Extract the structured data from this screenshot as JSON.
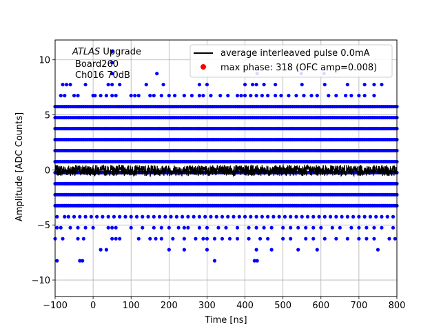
{
  "chart_data": {
    "type": "scatter",
    "title": "",
    "xlabel": "Time [ns]",
    "ylabel": "Amplitude [ADC Counts]",
    "xlim": [
      -100,
      800
    ],
    "ylim": [
      -11.5,
      11.8
    ],
    "xticks": [
      -100,
      0,
      100,
      200,
      300,
      400,
      500,
      600,
      700,
      800
    ],
    "yticks": [
      -10,
      -5,
      0,
      5,
      10
    ],
    "xtick_labels": [
      "−100",
      "0",
      "100",
      "200",
      "300",
      "400",
      "500",
      "600",
      "700",
      "800"
    ],
    "ytick_labels": [
      "−10",
      "−5",
      "0",
      "5",
      "10"
    ],
    "grid": true,
    "legend_position": "top-right",
    "annotation": {
      "line1_italic": "ATLAS",
      "line1_rest": " Upgrade",
      "line2": "Board260",
      "line3": "Ch016 70dB"
    },
    "series": [
      {
        "name": "average interleaved pulse 0.0mA",
        "kind": "line",
        "color": "#000000",
        "amplitude_range": [
          -0.6,
          0.5
        ]
      },
      {
        "name": "",
        "kind": "scatter",
        "color": "#0000ff",
        "dense_levels": [
          5.75,
          4.75,
          3.75,
          2.75,
          1.75,
          0.75,
          -0.25,
          -1.25,
          -2.25,
          -3.25
        ],
        "sparse_levels": [
          {
            "y": 10.75,
            "x": [
              50
            ]
          },
          {
            "y": 9.75,
            "x": [
              50
            ]
          },
          {
            "y": 8.75,
            "x": [
              50,
              168,
              432,
              548,
              608
            ]
          },
          {
            "y": 7.75,
            "x": [
              -80,
              -70,
              -60,
              -20,
              40,
              50,
              70,
              140,
              185,
              280,
              300,
              400,
              420,
              430,
              450,
              480,
              550,
              610,
              670,
              715,
              740,
              760
            ]
          },
          {
            "y": 6.75,
            "x": [
              -85,
              -75,
              -50,
              -40,
              0,
              5,
              20,
              35,
              50,
              60,
              100,
              110,
              120,
              150,
              160,
              180,
              200,
              215,
              240,
              260,
              280,
              290,
              310,
              335,
              355,
              380,
              390,
              400,
              415,
              430,
              445,
              460,
              480,
              495,
              515,
              535,
              555,
              575,
              590,
              620,
              640,
              665,
              680,
              700,
              715,
              740
            ]
          },
          {
            "y": -4.25,
            "x": [
              -95,
              -75,
              -65,
              -50,
              -35,
              -20,
              -5,
              10,
              25,
              40,
              55,
              70,
              85,
              100,
              115,
              130,
              145,
              160,
              175,
              190,
              205,
              220,
              235,
              250,
              265,
              280,
              295,
              310,
              325,
              340,
              355,
              370,
              385,
              400,
              415,
              430,
              445,
              460,
              475,
              490,
              505,
              520,
              535,
              550,
              565,
              580,
              595,
              610,
              625,
              640,
              655,
              670,
              685,
              700,
              715,
              730,
              745,
              760,
              775,
              790
            ]
          },
          {
            "y": -5.25,
            "x": [
              -95,
              -85,
              -60,
              -40,
              -20,
              0,
              40,
              50,
              60,
              100,
              130,
              160,
              180,
              200,
              225,
              240,
              250,
              280,
              300,
              330,
              350,
              380,
              410,
              430,
              450,
              470,
              500,
              520,
              540,
              560,
              580,
              600,
              630,
              650,
              680,
              700,
              720,
              740,
              760,
              790
            ]
          },
          {
            "y": -6.25,
            "x": [
              -100,
              -80,
              -40,
              -25,
              50,
              60,
              70,
              120,
              150,
              165,
              180,
              210,
              240,
              270,
              290,
              300,
              320,
              340,
              360,
              380,
              410,
              440,
              460,
              500,
              520,
              560,
              580,
              610,
              640,
              670,
              700,
              720,
              740,
              780,
              795
            ]
          },
          {
            "y": -7.25,
            "x": [
              20,
              35,
              200,
              240,
              300,
              430,
              470,
              540,
              590,
              750
            ]
          },
          {
            "y": -8.25,
            "x": [
              -95,
              -35,
              -28,
              320,
              425,
              432
            ]
          }
        ]
      },
      {
        "name": "max phase: 318 (OFC amp=0.008)",
        "kind": "scatter",
        "color": "#ff0000",
        "points": []
      }
    ]
  }
}
